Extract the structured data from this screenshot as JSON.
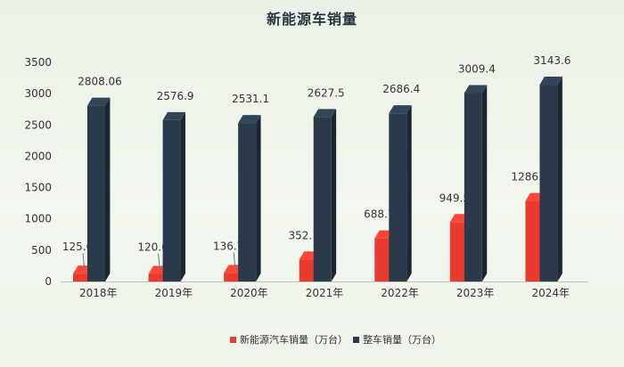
{
  "chart_data": {
    "type": "bar",
    "title": "新能源车销量",
    "categories": [
      "2018年",
      "2019年",
      "2020年",
      "2021年",
      "2022年",
      "2023年",
      "2024年"
    ],
    "series": [
      {
        "name": "新能源汽车销量（万台）",
        "color": "#e83a2e",
        "values": [
          125.6,
          120.6,
          136.7,
          352.1,
          688.7,
          949.5,
          1286.6
        ],
        "labels": [
          "125.6",
          "120.6",
          "136.7",
          "352.1",
          "688.7",
          "949.5",
          "1286.6"
        ]
      },
      {
        "name": "整车销量（万台）",
        "color": "#2a3a4a",
        "values": [
          2808.06,
          2576.9,
          2531.1,
          2627.5,
          2686.4,
          3009.4,
          3143.6
        ],
        "labels": [
          "2808.06",
          "2576.9",
          "2531.1",
          "2627.5",
          "2686.4",
          "3009.4",
          "3143.6"
        ]
      }
    ],
    "ylim": [
      0,
      3500
    ],
    "yticks": [
      "0",
      "500",
      "1000",
      "1500",
      "2000",
      "2500",
      "3000",
      "3500"
    ],
    "xlabel": "",
    "ylabel": "",
    "legend": "bottom",
    "grid": false,
    "style": "3d-column"
  }
}
